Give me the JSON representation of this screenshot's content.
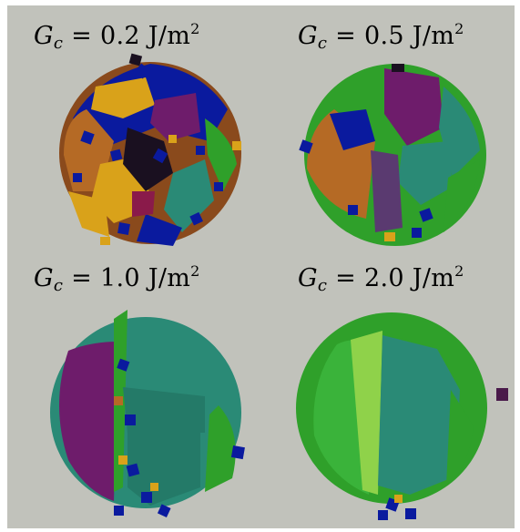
{
  "panels": [
    {
      "symbol": "G",
      "subscript": "c",
      "equals": "=",
      "value": "0.2",
      "unit_base": "J/m",
      "unit_exp": "2"
    },
    {
      "symbol": "G",
      "subscript": "c",
      "equals": "=",
      "value": "0.5",
      "unit_base": "J/m",
      "unit_exp": "2"
    },
    {
      "symbol": "G",
      "subscript": "c",
      "equals": "=",
      "value": "1.0",
      "unit_base": "J/m",
      "unit_exp": "2"
    },
    {
      "symbol": "G",
      "subscript": "c",
      "equals": "=",
      "value": "2.0",
      "unit_base": "J/m",
      "unit_exp": "2"
    }
  ],
  "colors": {
    "background": "#c1c2bb",
    "green": "#2fa02a",
    "teal": "#2a8a76",
    "purple": "#6e1c6b",
    "blue": "#0a1a9e",
    "gold": "#d9a21a",
    "brown": "#8a4a1c",
    "dark": "#1a1020"
  }
}
